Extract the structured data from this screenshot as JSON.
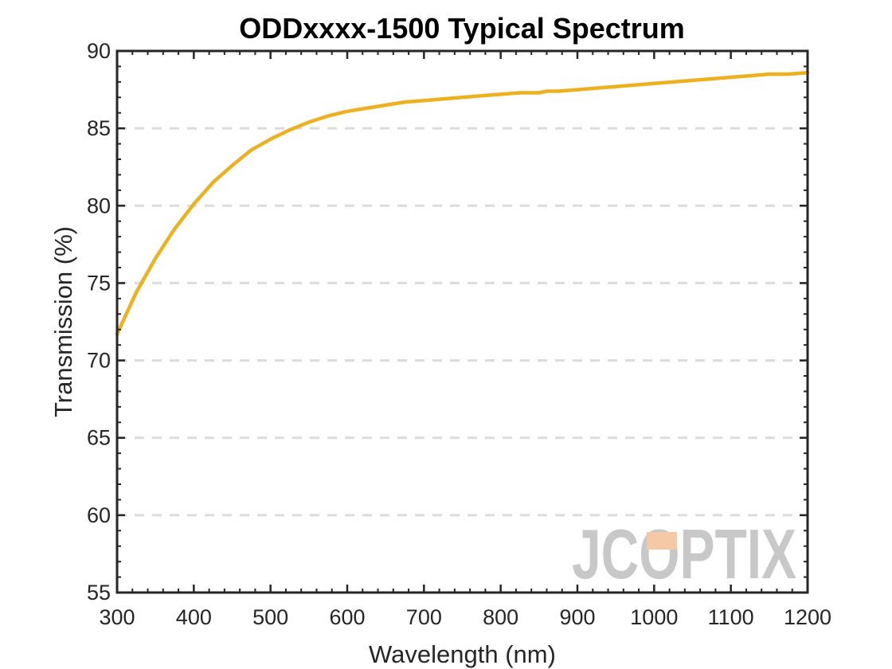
{
  "chart_data": {
    "type": "line",
    "title": "ODDxxxx-1500 Typical Spectrum",
    "xlabel": "Wavelength (nm)",
    "ylabel": "Transmission (%)",
    "xlim": [
      300,
      1200
    ],
    "ylim": [
      55,
      90
    ],
    "xticks": [
      "300",
      "400",
      "500",
      "600",
      "700",
      "800",
      "900",
      "1000",
      "1100",
      "1200"
    ],
    "yticks": [
      "55",
      "60",
      "65",
      "70",
      "75",
      "80",
      "85",
      "90"
    ],
    "grid": "horizontal-dashed",
    "line_color": "#EDB120",
    "series": [
      {
        "x": [
          300,
          325,
          350,
          375,
          400,
          425,
          450,
          475,
          500,
          525,
          550,
          575,
          600,
          625,
          650,
          675,
          700,
          725,
          750,
          775,
          800,
          825,
          850,
          860,
          875,
          900,
          925,
          950,
          975,
          1000,
          1025,
          1050,
          1075,
          1100,
          1125,
          1150,
          1175,
          1200
        ],
        "y": [
          71.7,
          74.4,
          76.6,
          78.5,
          80.1,
          81.5,
          82.6,
          83.6,
          84.3,
          84.9,
          85.4,
          85.8,
          86.1,
          86.3,
          86.5,
          86.7,
          86.8,
          86.9,
          87.0,
          87.1,
          87.2,
          87.3,
          87.3,
          87.4,
          87.4,
          87.5,
          87.6,
          87.7,
          87.8,
          87.9,
          88.0,
          88.1,
          88.2,
          88.3,
          88.4,
          88.5,
          88.5,
          88.6
        ]
      }
    ]
  },
  "watermark": {
    "text": "JCOPTIX",
    "color": "#c8c8c8",
    "accent_color": "#f6c9a6"
  }
}
